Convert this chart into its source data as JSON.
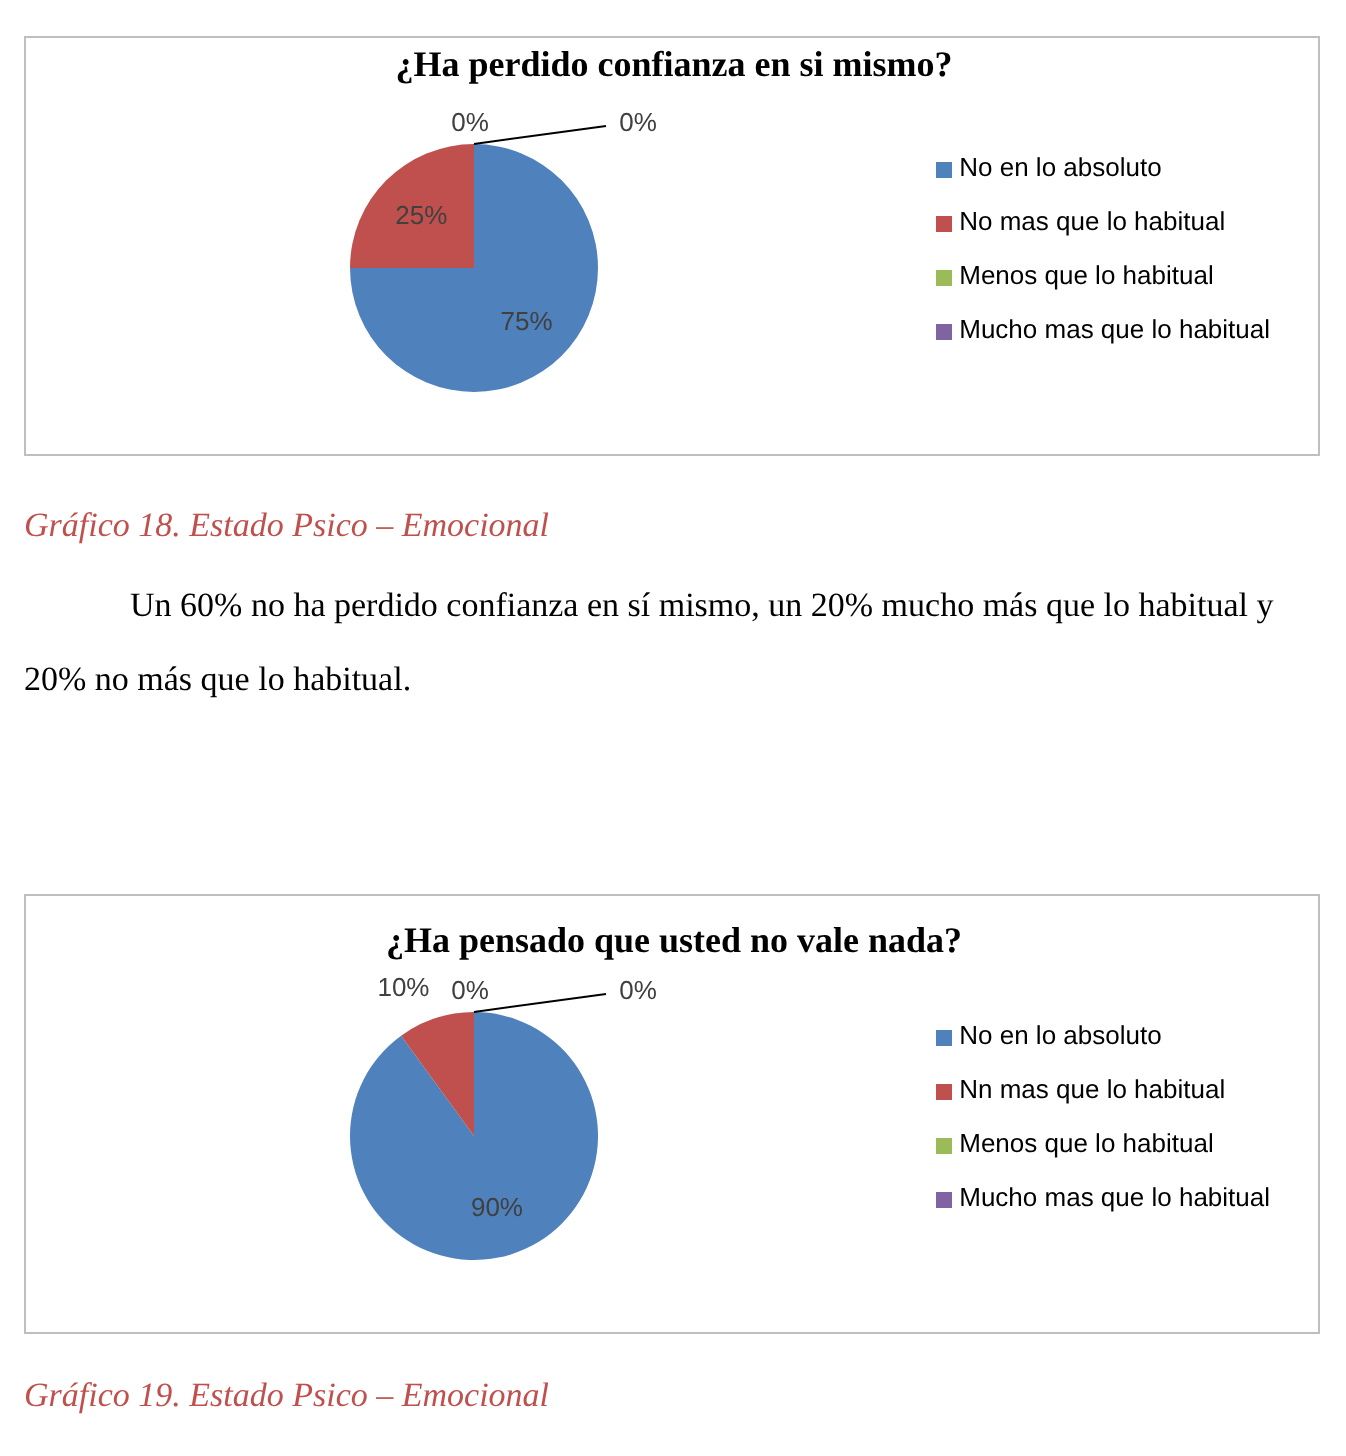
{
  "chart_data": [
    {
      "type": "pie",
      "title": "¿Ha perdido confianza en si mismo?",
      "categories": [
        "No en lo absoluto",
        "No mas que lo habitual",
        "Menos que lo habitual",
        "Mucho mas que lo habitual"
      ],
      "values": [
        75,
        25,
        0,
        0
      ],
      "colors": [
        "#4f81bd",
        "#c0504d",
        "#9bbb59",
        "#8064a2"
      ],
      "value_labels": [
        "75%",
        "25%",
        "0%",
        "0%"
      ],
      "legend": "right",
      "annotations": [
        "Gráfico 18. Estado Psico – Emocional",
        "Un 60% no ha perdido confianza en sí mismo, un 20% mucho más que lo habitual y 20% no más que lo habitual."
      ]
    },
    {
      "type": "pie",
      "title": "¿Ha pensado que usted no vale nada?",
      "categories": [
        "No en lo absoluto",
        "Nn mas que lo habitual",
        "Menos que lo habitual",
        "Mucho mas que lo habitual"
      ],
      "values": [
        90,
        10,
        0,
        0
      ],
      "colors": [
        "#4f81bd",
        "#c0504d",
        "#9bbb59",
        "#8064a2"
      ],
      "value_labels": [
        "90%",
        "10%",
        "0%",
        "0%"
      ],
      "legend": "right",
      "annotations": [
        "Gráfico 19. Estado Psico – Emocional"
      ]
    }
  ]
}
